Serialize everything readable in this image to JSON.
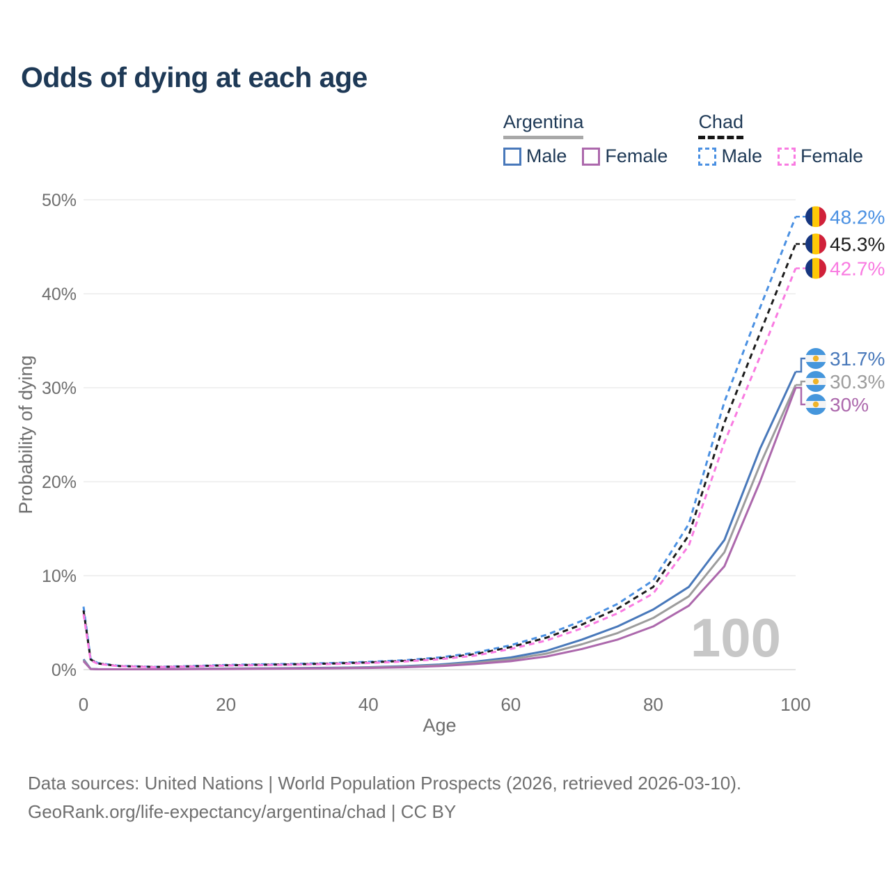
{
  "title": "Odds of dying at each age",
  "legend": {
    "groups": [
      {
        "label": "Argentina",
        "line_style": "solid",
        "underline_color": "#a8a8a8",
        "items": [
          {
            "label": "Male",
            "color": "#4878ba"
          },
          {
            "label": "Female",
            "color": "#ac68ac"
          }
        ]
      },
      {
        "label": "Chad",
        "line_style": "dashed",
        "underline_color": "#151515",
        "items": [
          {
            "label": "Male",
            "color": "#4a90e2"
          },
          {
            "label": "Female",
            "color": "#f97ae1"
          }
        ]
      }
    ]
  },
  "chart_data": {
    "type": "line",
    "title": "Odds of dying at each age",
    "xlabel": "Age",
    "ylabel": "Probability of dying",
    "xlim": [
      0,
      100
    ],
    "ylim": [
      0,
      50
    ],
    "grid": "horizontal",
    "legend_position": "top-right",
    "hover_age_label": "100",
    "x_ticks": [
      {
        "value": 0,
        "label": "0"
      },
      {
        "value": 20,
        "label": "20"
      },
      {
        "value": 40,
        "label": "40"
      },
      {
        "value": 60,
        "label": "60"
      },
      {
        "value": 80,
        "label": "80"
      },
      {
        "value": 100,
        "label": "100"
      }
    ],
    "y_ticks": [
      {
        "value": 0,
        "label": "0%"
      },
      {
        "value": 10,
        "label": "10%"
      },
      {
        "value": 20,
        "label": "20%"
      },
      {
        "value": 30,
        "label": "30%"
      },
      {
        "value": 40,
        "label": "40%"
      },
      {
        "value": 50,
        "label": "50%"
      }
    ],
    "ages": [
      0,
      1,
      2,
      5,
      10,
      15,
      20,
      25,
      30,
      35,
      40,
      45,
      50,
      55,
      60,
      65,
      70,
      75,
      80,
      85,
      90,
      95,
      100
    ],
    "series": [
      {
        "name": "Chad Male",
        "country": "Chad",
        "sex": "Male",
        "color": "#4a90e2",
        "dashed": true,
        "flag": "chad",
        "end_label": "48.2%",
        "label_color": "#4a90e2",
        "values": [
          6.7,
          1.15,
          0.7,
          0.4,
          0.3,
          0.38,
          0.5,
          0.56,
          0.62,
          0.7,
          0.82,
          1.0,
          1.3,
          1.8,
          2.6,
          3.7,
          5.2,
          7.0,
          9.5,
          15.5,
          28.5,
          38.5,
          48.2
        ]
      },
      {
        "name": "Chad",
        "country": "Chad",
        "sex": "Both",
        "color": "#1c1c1c",
        "dashed": true,
        "flag": "chad",
        "end_label": "45.3%",
        "label_color": "#1c1c1c",
        "values": [
          6.3,
          1.08,
          0.66,
          0.38,
          0.28,
          0.35,
          0.46,
          0.52,
          0.57,
          0.65,
          0.76,
          0.93,
          1.2,
          1.65,
          2.4,
          3.4,
          4.8,
          6.5,
          8.8,
          14.3,
          26.3,
          35.8,
          45.3
        ]
      },
      {
        "name": "Chad Female",
        "country": "Chad",
        "sex": "Female",
        "color": "#f97ae1",
        "dashed": true,
        "flag": "chad",
        "end_label": "42.7%",
        "label_color": "#f97ae1",
        "values": [
          5.9,
          1.0,
          0.62,
          0.36,
          0.27,
          0.33,
          0.43,
          0.48,
          0.53,
          0.6,
          0.7,
          0.86,
          1.1,
          1.5,
          2.2,
          3.1,
          4.4,
          6.0,
          8.1,
          13.2,
          24.2,
          33.3,
          42.7
        ]
      },
      {
        "name": "Argentina Male",
        "country": "Argentina",
        "sex": "Male",
        "color": "#4878ba",
        "dashed": false,
        "flag": "argentina",
        "end_label": "31.7%",
        "label_color": "#4878ba",
        "values": [
          1.1,
          0.08,
          0.05,
          0.04,
          0.04,
          0.08,
          0.12,
          0.14,
          0.16,
          0.2,
          0.26,
          0.37,
          0.55,
          0.85,
          1.3,
          2.0,
          3.2,
          4.6,
          6.4,
          8.8,
          13.8,
          23.5,
          31.7
        ]
      },
      {
        "name": "Argentina",
        "country": "Argentina",
        "sex": "Both",
        "color": "#9c9c9c",
        "dashed": false,
        "flag": "argentina",
        "end_label": "30.3%",
        "label_color": "#9c9c9c",
        "values": [
          1.0,
          0.07,
          0.045,
          0.04,
          0.04,
          0.07,
          0.1,
          0.12,
          0.14,
          0.17,
          0.22,
          0.31,
          0.47,
          0.72,
          1.1,
          1.7,
          2.7,
          3.9,
          5.5,
          7.8,
          12.5,
          21.8,
          30.3
        ]
      },
      {
        "name": "Argentina Female",
        "country": "Argentina",
        "sex": "Female",
        "color": "#ac68ac",
        "dashed": false,
        "flag": "argentina",
        "end_label": "30%",
        "label_color": "#ac68ac",
        "values": [
          0.9,
          0.065,
          0.04,
          0.035,
          0.035,
          0.05,
          0.07,
          0.09,
          0.11,
          0.14,
          0.18,
          0.25,
          0.38,
          0.6,
          0.9,
          1.4,
          2.2,
          3.2,
          4.6,
          6.8,
          11.0,
          20.0,
          30.0
        ]
      }
    ],
    "flag_colors": {
      "chad": {
        "blue": "#16367f",
        "yellow": "#fdc807",
        "red": "#d0213a"
      },
      "argentina": {
        "blue": "#4596dc",
        "white": "#f4f4f4",
        "sun": "#f0b429"
      }
    }
  },
  "footer": {
    "line1": "Data sources: United Nations | World Population Prospects (2026, retrieved 2026-03-10).",
    "line2": "GeoRank.org/life-expectancy/argentina/chad | CC BY"
  }
}
